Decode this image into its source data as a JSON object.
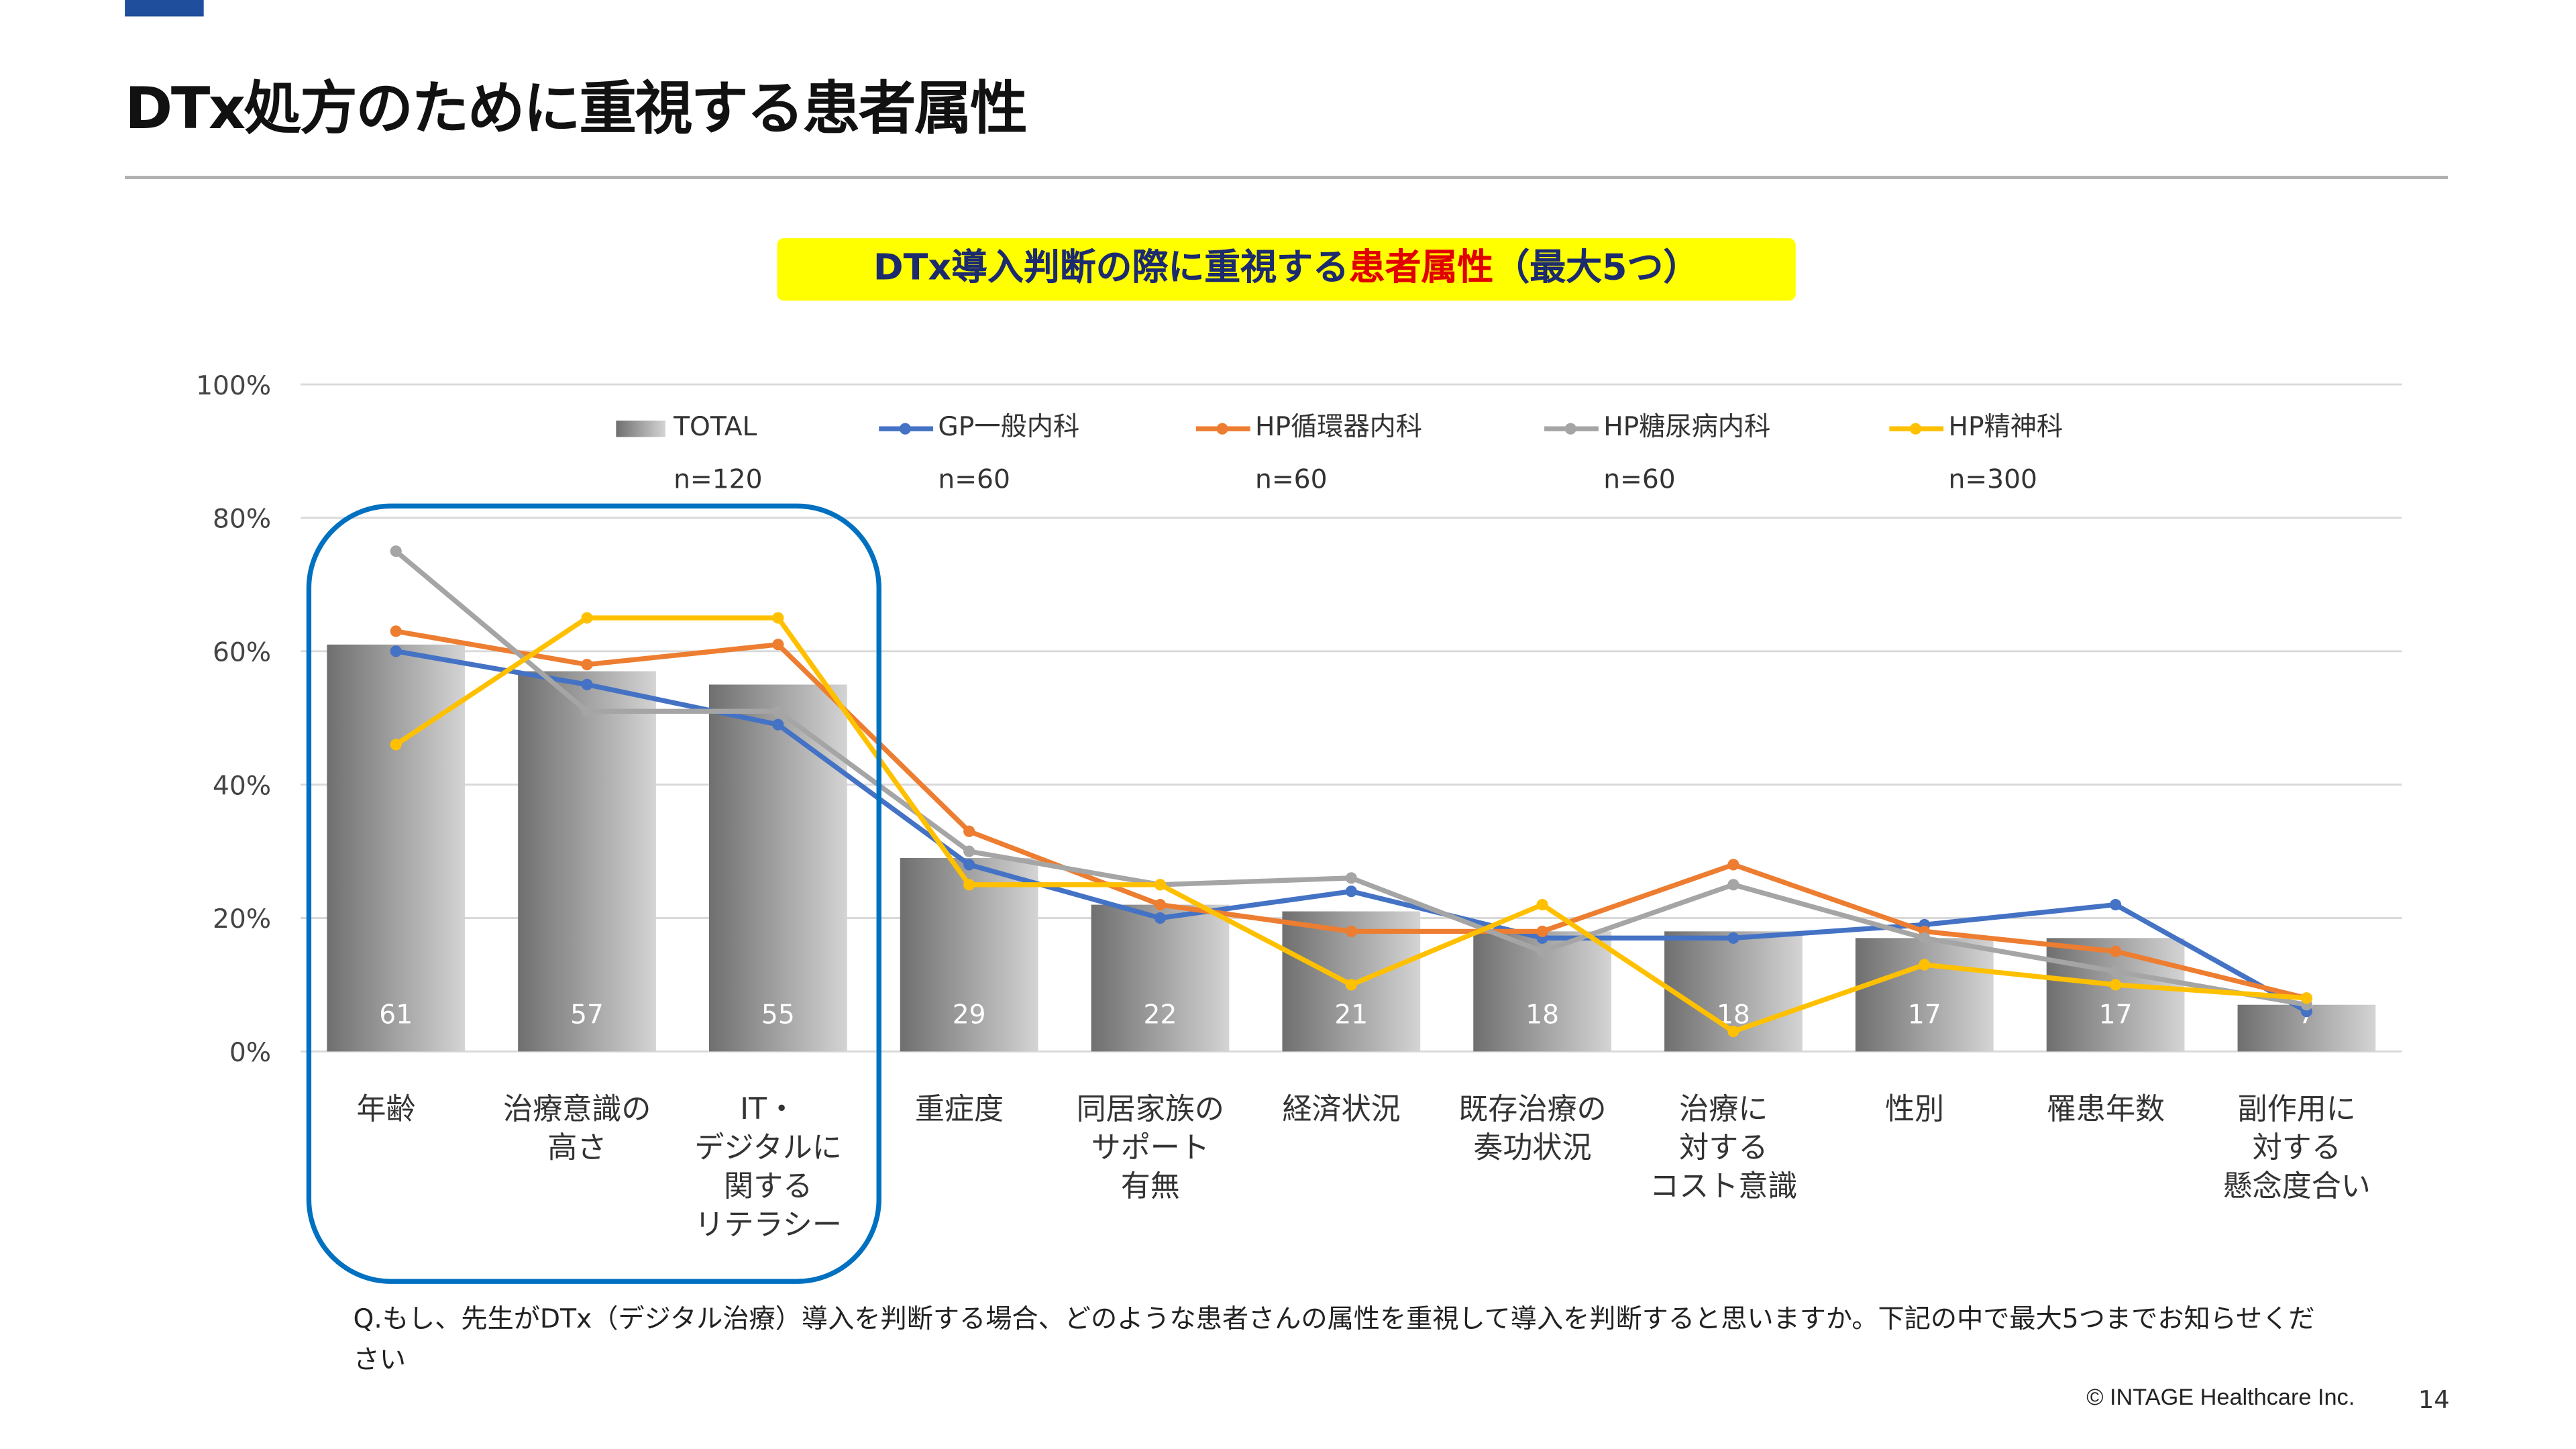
{
  "header": {
    "title": "DTx処方のために重視する患者属性"
  },
  "subtitle": {
    "part1": "DTx導入判断の際に重視する",
    "highlight": "患者属性",
    "part2": "（最大5つ）"
  },
  "colors": {
    "accent": "#1f4e9c",
    "highlight_box": "#ffff00",
    "highlight_text": "#e00000",
    "focus_frame": "#0070c0"
  },
  "chart_data": {
    "type": "bar+line",
    "ylim": [
      0,
      100
    ],
    "yticks": [
      "0%",
      "20%",
      "40%",
      "60%",
      "80%",
      "100%"
    ],
    "grid": true,
    "legend_placement": "top",
    "categories": [
      [
        "年齢"
      ],
      [
        "治療意識の",
        "高さ"
      ],
      [
        "IT・",
        "デジタルに",
        "関する",
        "リテラシー"
      ],
      [
        "重症度"
      ],
      [
        "同居家族の",
        "サポート",
        "有無"
      ],
      [
        "経済状況"
      ],
      [
        "既存治療の",
        "奏功状況"
      ],
      [
        "治療に",
        "対する",
        "コスト意識"
      ],
      [
        "性別"
      ],
      [
        "罹患年数"
      ],
      [
        "副作用に",
        "対する",
        "懸念度合い"
      ]
    ],
    "bar": {
      "name": "TOTAL",
      "n": "n=120",
      "values": [
        61,
        57,
        55,
        29,
        22,
        21,
        18,
        18,
        17,
        17,
        7
      ],
      "labels": [
        "61",
        "57",
        "55",
        "29",
        "22",
        "21",
        "18",
        "18",
        "17",
        "17",
        "7"
      ]
    },
    "series": [
      {
        "name": "GP一般内科",
        "n": "n=60",
        "color": "#4472c4",
        "values": [
          60,
          55,
          49,
          28,
          20,
          24,
          17,
          17,
          19,
          22,
          6
        ]
      },
      {
        "name": "HP循環器内科",
        "n": "n=60",
        "color": "#ed7d31",
        "values": [
          63,
          58,
          61,
          33,
          22,
          18,
          18,
          28,
          18,
          15,
          8
        ]
      },
      {
        "name": "HP糖尿病内科",
        "n": "n=60",
        "color": "#a5a5a5",
        "values": [
          75,
          51,
          51,
          30,
          25,
          26,
          15,
          25,
          17,
          12,
          7
        ]
      },
      {
        "name": "HP精神科",
        "n": "n=300",
        "color": "#ffc000",
        "values": [
          46,
          65,
          65,
          25,
          25,
          10,
          22,
          3,
          13,
          10,
          8
        ]
      }
    ]
  },
  "question": "Q.もし、先生がDTx（デジタル治療）導入を判断する場合、どのような患者さんの属性を重視して導入を判断すると思いますか。下記の中で最大5つまでお知らせください",
  "footer": {
    "copyright": "© INTAGE Healthcare Inc.",
    "page": "14"
  }
}
